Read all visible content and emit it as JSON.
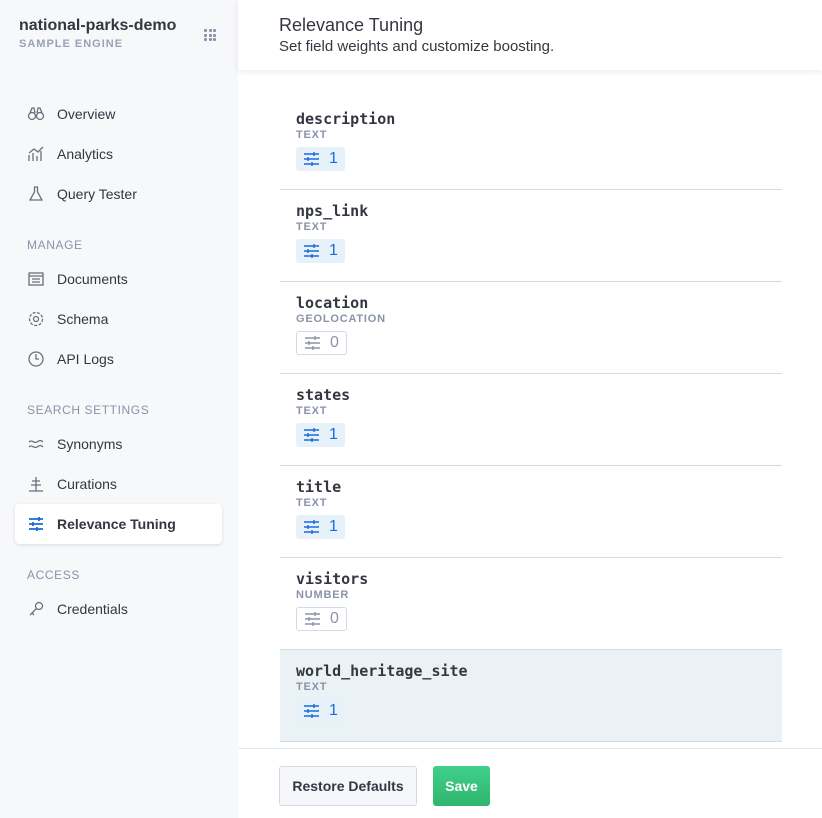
{
  "engine": {
    "name": "national-parks-demo",
    "subtitle": "SAMPLE ENGINE"
  },
  "sidebar": {
    "items": [
      {
        "label": "Overview",
        "icon": "binoculars-icon"
      },
      {
        "label": "Analytics",
        "icon": "analytics-icon"
      },
      {
        "label": "Query Tester",
        "icon": "flask-icon"
      }
    ],
    "manage_label": "MANAGE",
    "manage": [
      {
        "label": "Documents",
        "icon": "documents-icon"
      },
      {
        "label": "Schema",
        "icon": "gear-icon"
      },
      {
        "label": "API Logs",
        "icon": "clock-icon"
      }
    ],
    "search_label": "SEARCH SETTINGS",
    "search": [
      {
        "label": "Synonyms",
        "icon": "synonyms-icon"
      },
      {
        "label": "Curations",
        "icon": "curations-icon"
      },
      {
        "label": "Relevance Tuning",
        "icon": "sliders-icon",
        "active": true
      }
    ],
    "access_label": "ACCESS",
    "access": [
      {
        "label": "Credentials",
        "icon": "key-icon"
      }
    ]
  },
  "header": {
    "title": "Relevance Tuning",
    "subtitle": "Set field weights and customize boosting."
  },
  "fields": [
    {
      "name": "description",
      "type": "TEXT",
      "boosts": "1"
    },
    {
      "name": "nps_link",
      "type": "TEXT",
      "boosts": "1"
    },
    {
      "name": "location",
      "type": "GEOLOCATION",
      "boosts": "0"
    },
    {
      "name": "states",
      "type": "TEXT",
      "boosts": "1"
    },
    {
      "name": "title",
      "type": "TEXT",
      "boosts": "1"
    },
    {
      "name": "visitors",
      "type": "NUMBER",
      "boosts": "0"
    },
    {
      "name": "world_heritage_site",
      "type": "TEXT",
      "boosts": "1"
    }
  ],
  "footer": {
    "restore_label": "Restore Defaults",
    "save_label": "Save"
  },
  "colors": {
    "accent": "#1a6bd8",
    "save": "#33bd76",
    "highlight": "#ebf2f6"
  }
}
